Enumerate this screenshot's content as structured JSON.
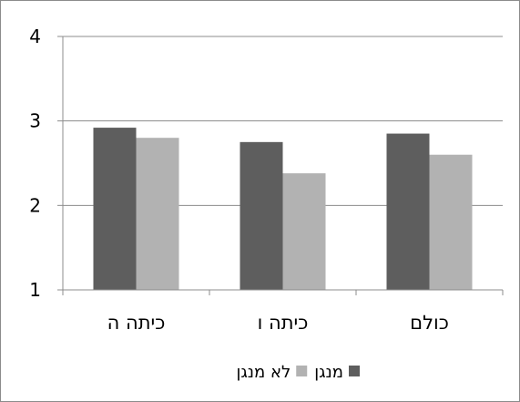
{
  "chart_data": {
    "type": "bar",
    "categories": [
      "כיתה ה",
      "כיתה ו",
      "כולם"
    ],
    "series": [
      {
        "name": "מנגן",
        "values": [
          2.92,
          2.75,
          2.85
        ],
        "color": "#5e5e5e"
      },
      {
        "name": "לא מנגן",
        "values": [
          2.8,
          2.38,
          2.6
        ],
        "color": "#b2b2b2"
      }
    ],
    "ylim": [
      1,
      4
    ],
    "yticks": [
      "1",
      "2",
      "3",
      "4"
    ],
    "grid": true,
    "legend_position": "bottom",
    "title": "",
    "xlabel": "",
    "ylabel": ""
  }
}
